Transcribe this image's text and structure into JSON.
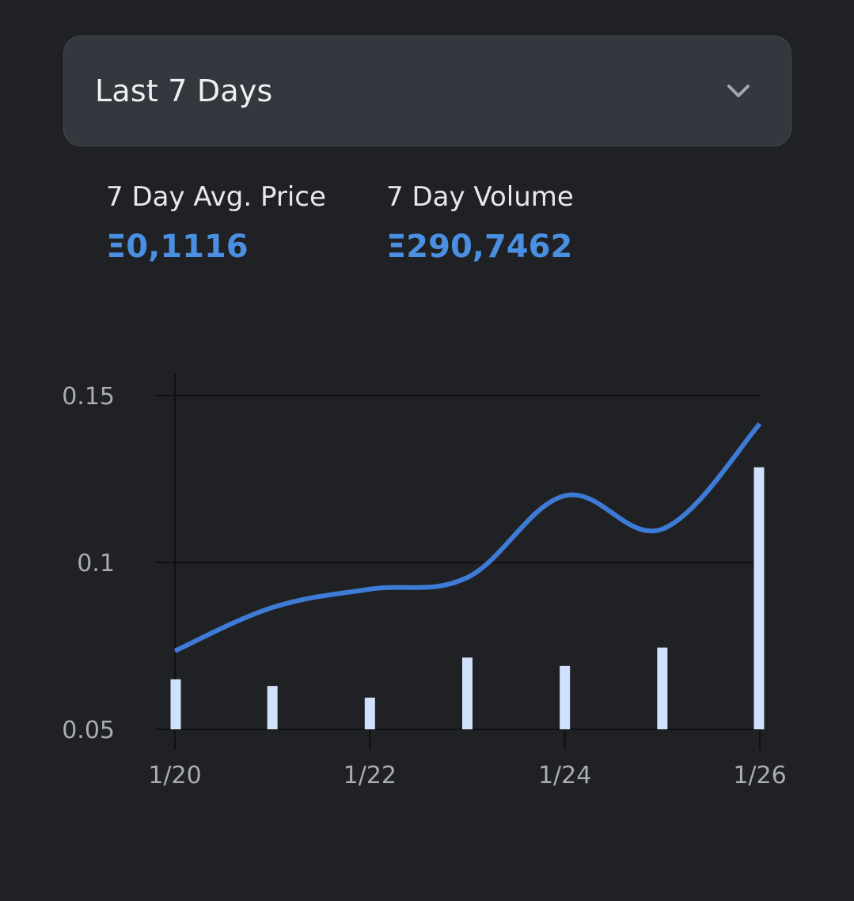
{
  "range_select": {
    "label": "Last 7 Days",
    "icon": "chevron-down-icon"
  },
  "stats": {
    "avg_price_label": "7 Day Avg. Price",
    "avg_price_value": "Ξ0,1116",
    "volume_label": "7 Day Volume",
    "volume_value": "Ξ290,7462"
  },
  "colors": {
    "background": "#202124",
    "accent": "#4a8fe2",
    "line": "#3d7bd6",
    "bars": "#cfe1fb",
    "grid": "#0f1012"
  },
  "chart_data": {
    "type": "line",
    "x": [
      "1/20",
      "1/21",
      "1/22",
      "1/23",
      "1/24",
      "1/25",
      "1/26"
    ],
    "x_tick_labels": [
      "1/20",
      "1/22",
      "1/24",
      "1/26"
    ],
    "y_tick_labels": [
      "0.15",
      "0.1",
      "0.05"
    ],
    "ylim": [
      0.05,
      0.15
    ],
    "grid": true,
    "series": [
      {
        "type": "line",
        "values": [
          0.0735,
          0.0865,
          0.092,
          0.0955,
          0.12,
          0.11,
          0.1415
        ]
      },
      {
        "type": "bar",
        "values": [
          0.065,
          0.063,
          0.0595,
          0.0715,
          0.069,
          0.0745,
          0.1285
        ]
      }
    ]
  }
}
